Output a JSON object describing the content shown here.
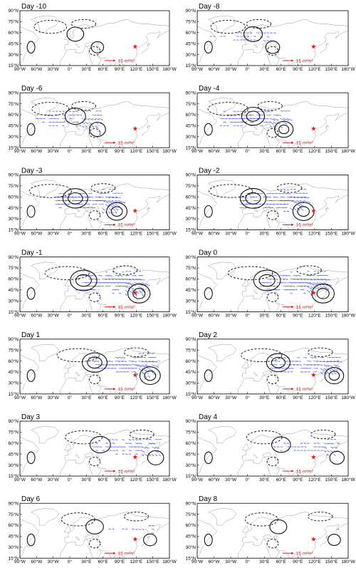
{
  "figure": {
    "lat_ticks": [
      "15°N",
      "30°N",
      "45°N",
      "60°N",
      "75°N",
      "90°N"
    ],
    "lon_ticks": [
      "90°W",
      "60°W",
      "30°W",
      "0°",
      "30°E",
      "60°E",
      "90°E",
      "120°E",
      "150°E",
      "180°W"
    ],
    "reference_vector": "15 m²/s²",
    "colors": {
      "wave_activity_flux": "#2a3be0",
      "reference_vector": "#e02020",
      "station_marker": "#e02020",
      "coastline": "#9a9a9a",
      "contour": "#111111"
    }
  },
  "panels": [
    {
      "title": "Day -10",
      "intensity": 0.12,
      "front_lon": 45
    },
    {
      "title": "Day -8",
      "intensity": 0.25,
      "front_lon": 40
    },
    {
      "title": "Day -6",
      "intensity": 0.45,
      "front_lon": 45
    },
    {
      "title": "Day -4",
      "intensity": 0.65,
      "front_lon": 60
    },
    {
      "title": "Day -3",
      "intensity": 0.85,
      "front_lon": 80
    },
    {
      "title": "Day -2",
      "intensity": 0.9,
      "front_lon": 95
    },
    {
      "title": "Day -1",
      "intensity": 1.0,
      "front_lon": 120
    },
    {
      "title": "Day 0",
      "intensity": 1.0,
      "front_lon": 130
    },
    {
      "title": "Day 1",
      "intensity": 0.85,
      "front_lon": 140
    },
    {
      "title": "Day 2",
      "intensity": 0.7,
      "front_lon": 150
    },
    {
      "title": "Day 3",
      "intensity": 0.45,
      "front_lon": 150
    },
    {
      "title": "Day 4",
      "intensity": 0.3,
      "front_lon": 155
    },
    {
      "title": "Day 6",
      "intensity": 0.18,
      "front_lon": 140
    },
    {
      "title": "Day 8",
      "intensity": 0.12,
      "front_lon": 150
    }
  ]
}
